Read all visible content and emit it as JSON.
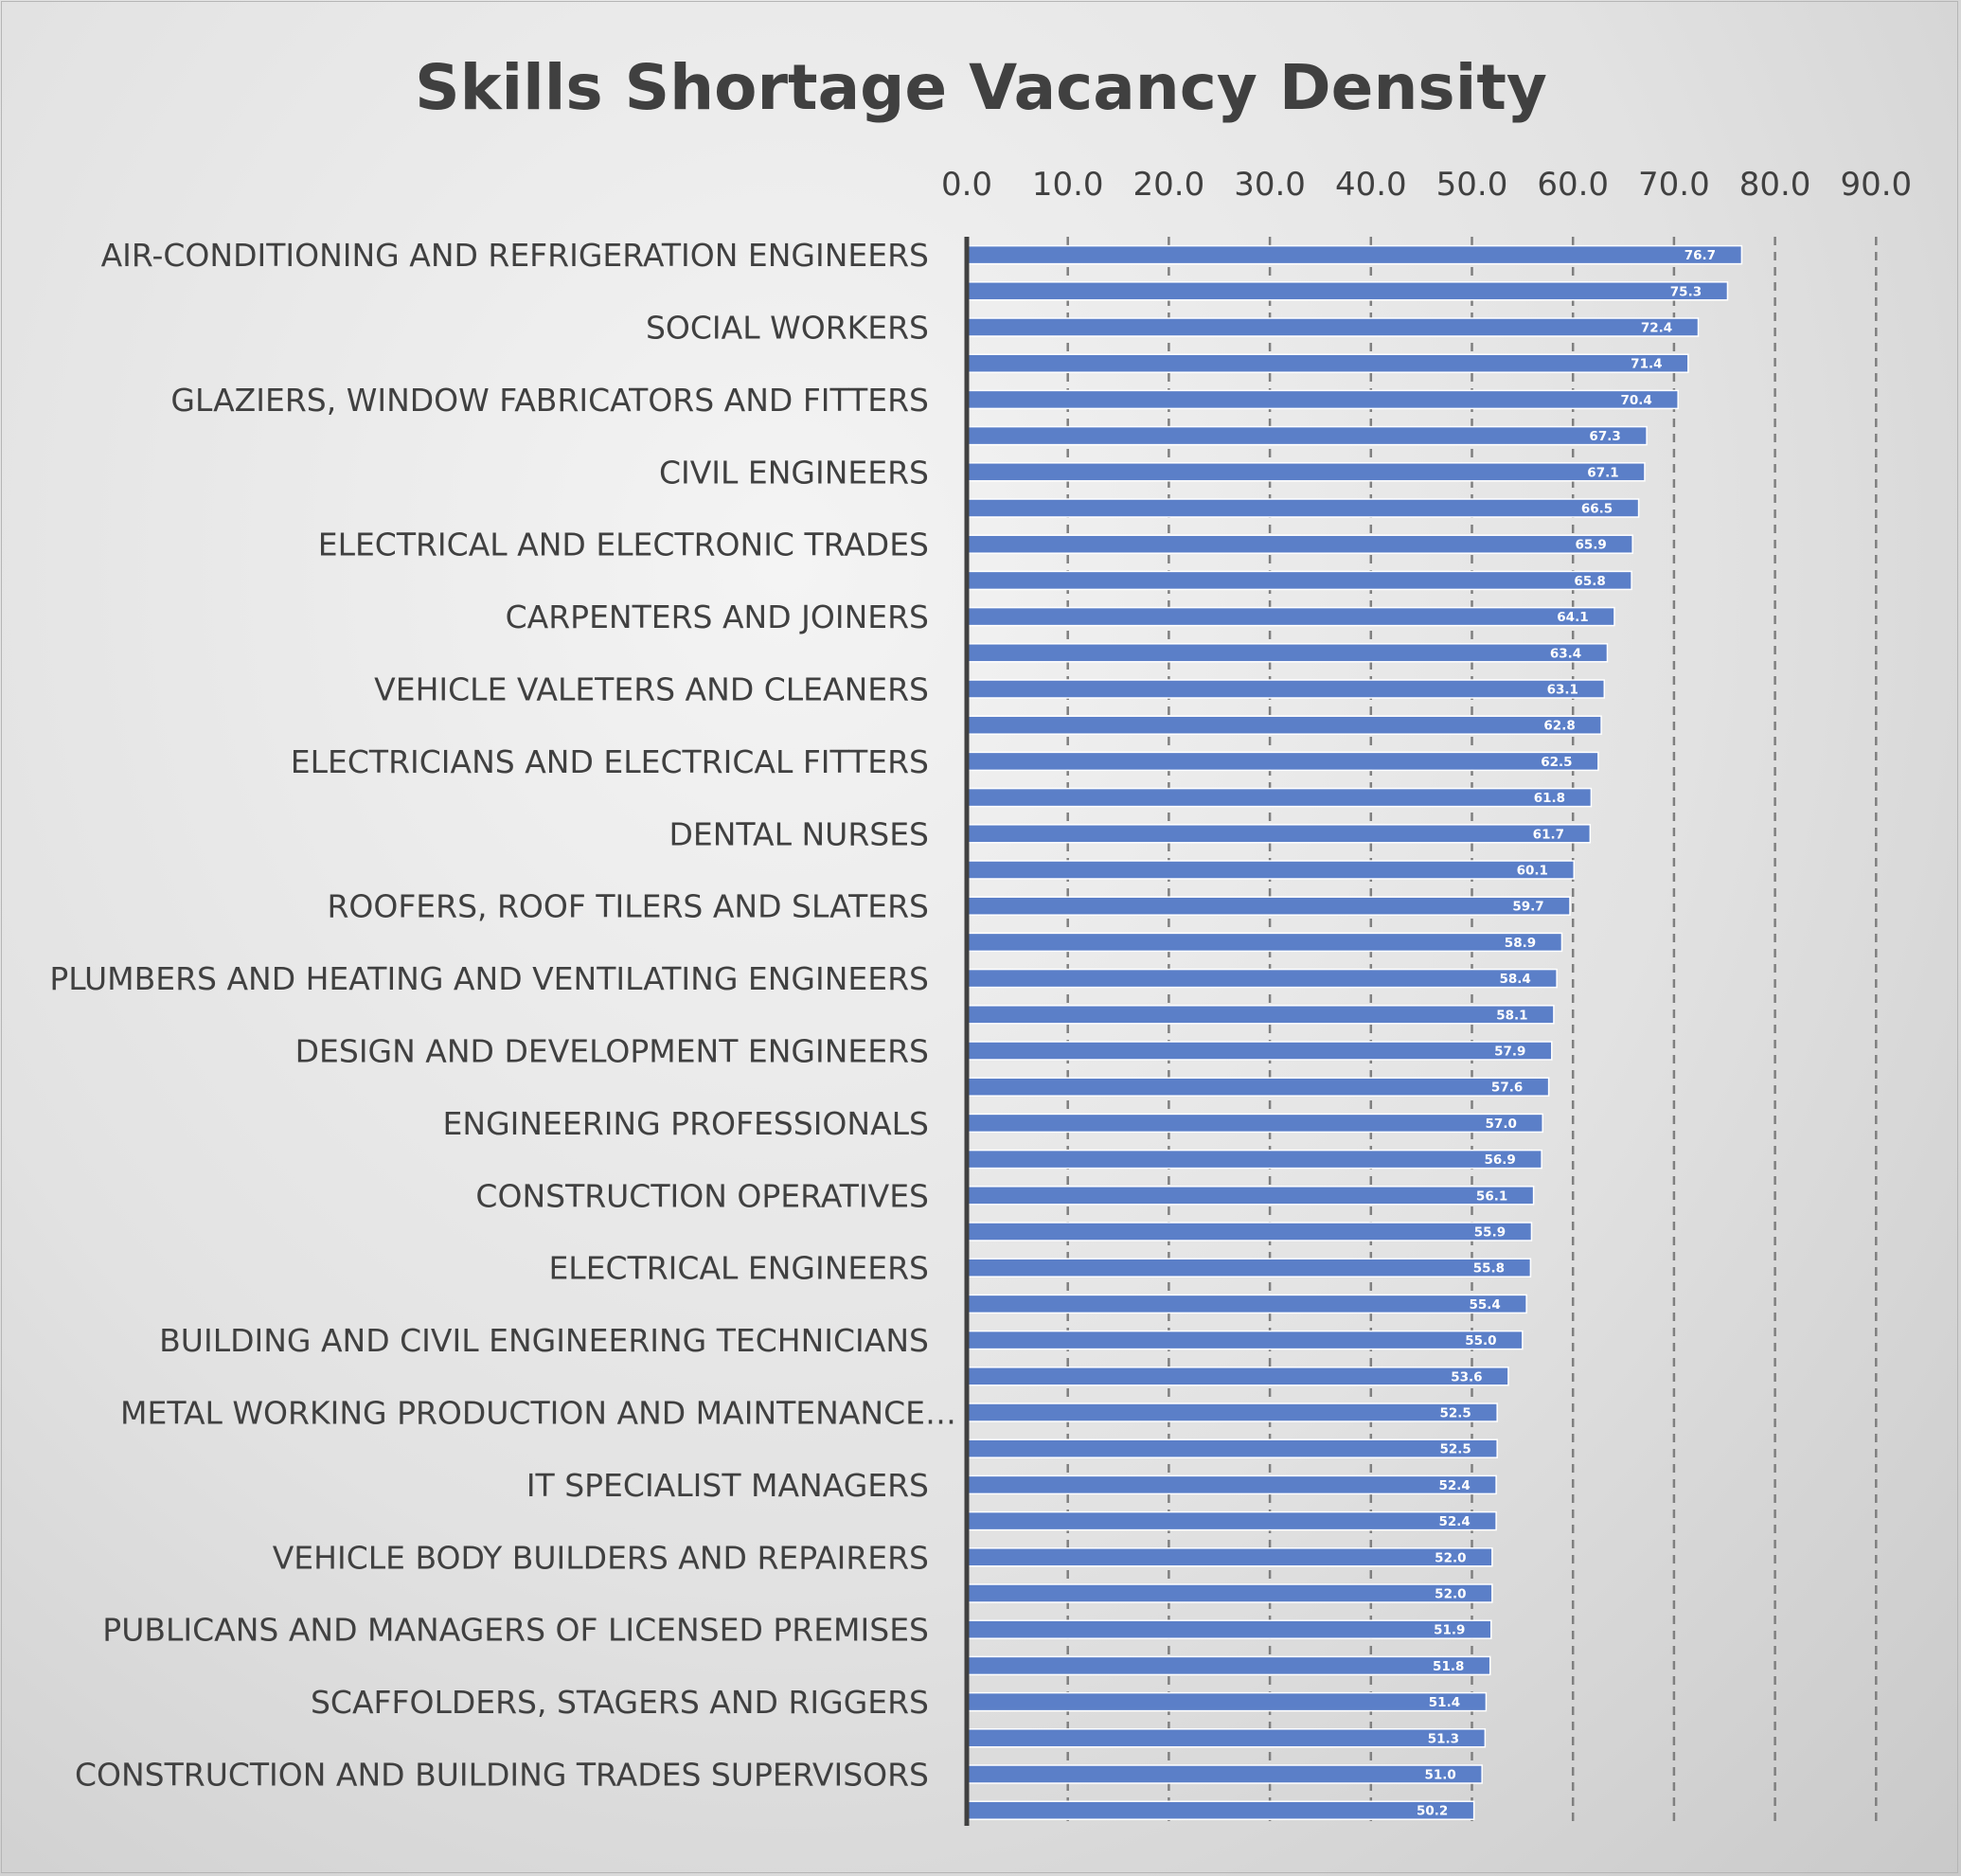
{
  "chart_data": {
    "type": "bar",
    "orientation": "horizontal",
    "title": "Skills Shortage Vacancy Density",
    "xlabel": "",
    "ylabel": "",
    "xlim": [
      0,
      90
    ],
    "x_ticks": [
      "0.0",
      "10.0",
      "20.0",
      "30.0",
      "40.0",
      "50.0",
      "60.0",
      "70.0",
      "80.0",
      "90.0"
    ],
    "x_axis_position": "top",
    "grid": "vertical dashed",
    "legend": "none",
    "bar_color": "#5b7fc8",
    "categories": [
      "AIR-CONDITIONING AND REFRIGERATION ENGINEERS",
      "",
      "SOCIAL WORKERS",
      "",
      "GLAZIERS, WINDOW FABRICATORS AND FITTERS",
      "",
      "CIVIL ENGINEERS",
      "",
      "ELECTRICAL AND ELECTRONIC TRADES",
      "",
      "CARPENTERS AND JOINERS",
      "",
      "VEHICLE VALETERS AND CLEANERS",
      "",
      "ELECTRICIANS AND ELECTRICAL FITTERS",
      "",
      "DENTAL NURSES",
      "",
      "ROOFERS, ROOF TILERS AND SLATERS",
      "",
      "PLUMBERS AND HEATING AND VENTILATING ENGINEERS",
      "",
      "DESIGN AND DEVELOPMENT ENGINEERS",
      "",
      "ENGINEERING PROFESSIONALS",
      "",
      "CONSTRUCTION OPERATIVES",
      "",
      "ELECTRICAL ENGINEERS",
      "",
      "BUILDING AND CIVIL ENGINEERING TECHNICIANS",
      "",
      "METAL WORKING PRODUCTION AND MAINTENANCE…",
      "",
      "IT SPECIALIST MANAGERS",
      "",
      "VEHICLE BODY BUILDERS AND REPAIRERS",
      "",
      "PUBLICANS AND MANAGERS OF LICENSED PREMISES",
      "",
      "SCAFFOLDERS, STAGERS AND RIGGERS",
      "",
      "CONSTRUCTION AND BUILDING TRADES SUPERVISORS",
      ""
    ],
    "values": [
      76.7,
      75.3,
      72.4,
      71.4,
      70.4,
      67.3,
      67.1,
      66.5,
      65.9,
      65.8,
      64.1,
      63.4,
      63.1,
      62.8,
      62.5,
      61.8,
      61.7,
      60.1,
      59.7,
      58.9,
      58.4,
      58.1,
      57.9,
      57.6,
      57.0,
      56.9,
      56.1,
      55.9,
      55.8,
      55.4,
      55.0,
      53.6,
      52.5,
      52.5,
      52.4,
      52.4,
      52.0,
      52.0,
      51.9,
      51.8,
      51.4,
      51.3,
      51.0,
      50.2
    ],
    "data_labels": [
      "76.7",
      "75.3",
      "72.4",
      "71.4",
      "70.4",
      "67.3",
      "67.1",
      "66.5",
      "65.9",
      "65.8",
      "64.1",
      "63.4",
      "63.1",
      "62.8",
      "62.5",
      "61.8",
      "61.7",
      "60.1",
      "59.7",
      "58.9",
      "58.4",
      "58.1",
      "57.9",
      "57.6",
      "57.0",
      "56.9",
      "56.1",
      "55.9",
      "55.8",
      "55.4",
      "55.0",
      "53.6",
      "52.5",
      "52.5",
      "52.4",
      "52.4",
      "52.0",
      "52.0",
      "51.9",
      "51.8",
      "51.4",
      "51.3",
      "51.0",
      "50.2"
    ]
  }
}
